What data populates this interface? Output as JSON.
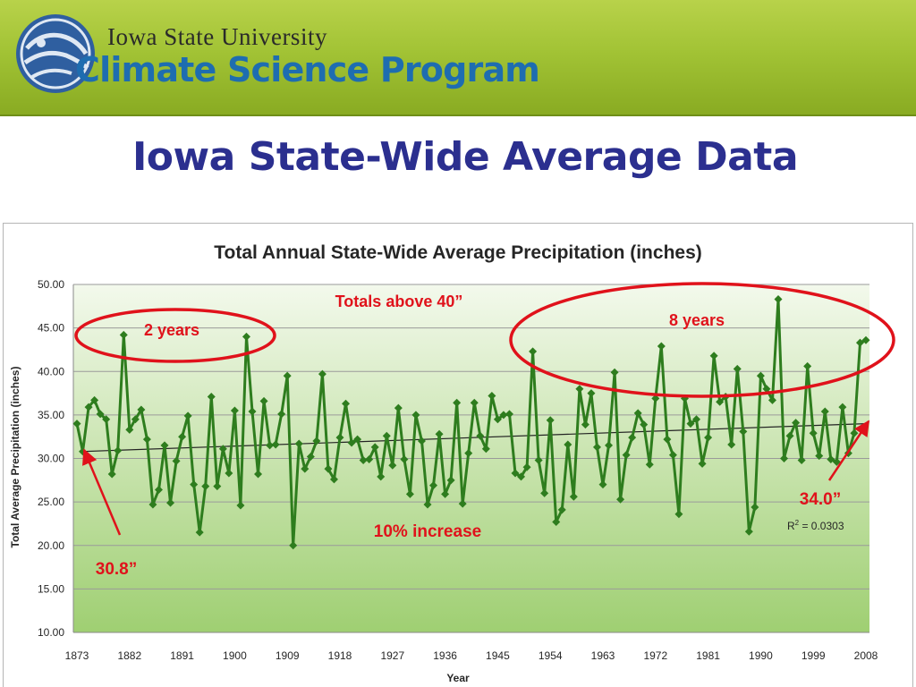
{
  "header": {
    "university": "Iowa State University",
    "program": "Climate Science Program",
    "logo_icon": "globe-logo-icon",
    "colors": {
      "banner": "#a2c335",
      "program_text": "#1e6db0",
      "title": "#2b2f8f"
    }
  },
  "slide": {
    "title": "Iowa State-Wide Average Data"
  },
  "chart_data": {
    "type": "line",
    "title": "Total Annual State-Wide Average Precipitation (inches)",
    "xlabel": "Year",
    "ylabel": "Total Average Precipitation (inches)",
    "ylim": [
      10,
      50
    ],
    "yticks": [
      "10.00",
      "15.00",
      "20.00",
      "25.00",
      "30.00",
      "35.00",
      "40.00",
      "45.00",
      "50.00"
    ],
    "xticks": [
      "1873",
      "1882",
      "1891",
      "1900",
      "1909",
      "1918",
      "1927",
      "1936",
      "1945",
      "1954",
      "1963",
      "1972",
      "1981",
      "1990",
      "1999",
      "2008"
    ],
    "x_range": [
      1873,
      2008
    ],
    "grid": true,
    "series": [
      {
        "color": "#2e7d1e",
        "marker": "diamond",
        "x": [
          1873,
          1874,
          1875,
          1876,
          1877,
          1878,
          1879,
          1880,
          1881,
          1882,
          1883,
          1884,
          1885,
          1886,
          1887,
          1888,
          1889,
          1890,
          1891,
          1892,
          1893,
          1894,
          1895,
          1896,
          1897,
          1898,
          1899,
          1900,
          1901,
          1902,
          1903,
          1904,
          1905,
          1906,
          1907,
          1908,
          1909,
          1910,
          1911,
          1912,
          1913,
          1914,
          1915,
          1916,
          1917,
          1918,
          1919,
          1920,
          1921,
          1922,
          1923,
          1924,
          1925,
          1926,
          1927,
          1928,
          1929,
          1930,
          1931,
          1932,
          1933,
          1934,
          1935,
          1936,
          1937,
          1938,
          1939,
          1940,
          1941,
          1942,
          1943,
          1944,
          1945,
          1946,
          1947,
          1948,
          1949,
          1950,
          1951,
          1952,
          1953,
          1954,
          1955,
          1956,
          1957,
          1958,
          1959,
          1960,
          1961,
          1962,
          1963,
          1964,
          1965,
          1966,
          1967,
          1968,
          1969,
          1970,
          1971,
          1972,
          1973,
          1974,
          1975,
          1976,
          1977,
          1978,
          1979,
          1980,
          1981,
          1982,
          1983,
          1984,
          1985,
          1986,
          1987,
          1988,
          1989,
          1990,
          1991,
          1992,
          1993,
          1994,
          1995,
          1996,
          1997,
          1998,
          1999,
          2000,
          2001,
          2002,
          2003,
          2004,
          2005,
          2006,
          2007,
          2008
        ],
        "y": [
          34.0,
          30.8,
          35.9,
          36.7,
          35.1,
          34.5,
          28.2,
          30.9,
          44.2,
          33.3,
          34.5,
          35.6,
          32.2,
          24.7,
          26.4,
          31.5,
          24.9,
          29.7,
          32.5,
          34.9,
          27.0,
          21.5,
          26.8,
          37.1,
          26.8,
          31.1,
          28.3,
          35.5,
          24.6,
          44.0,
          35.4,
          28.2,
          36.6,
          31.5,
          31.6,
          35.1,
          39.5,
          20.0,
          31.7,
          28.8,
          30.2,
          32.0,
          39.7,
          28.8,
          27.6,
          32.4,
          36.3,
          31.8,
          32.2,
          29.8,
          29.9,
          31.3,
          27.9,
          32.6,
          29.2,
          35.8,
          29.9,
          25.9,
          35.0,
          32.0,
          24.7,
          26.9,
          32.8,
          25.9,
          27.5,
          36.4,
          24.8,
          30.6,
          36.4,
          32.6,
          31.1,
          37.2,
          34.5,
          35.0,
          35.1,
          28.3,
          27.9,
          29.0,
          42.3,
          29.8,
          26.0,
          34.4,
          22.7,
          24.1,
          31.6,
          25.6,
          38.0,
          33.9,
          37.5,
          31.3,
          27.0,
          31.5,
          39.9,
          25.3,
          30.4,
          32.4,
          35.2,
          33.9,
          29.3,
          36.9,
          42.9,
          32.2,
          30.4,
          23.6,
          36.9,
          34.0,
          34.5,
          29.4,
          32.4,
          41.8,
          36.5,
          37.1,
          31.6,
          40.3,
          33.1,
          21.6,
          24.4,
          39.5,
          38.0,
          36.7,
          48.3,
          30.0,
          32.6,
          34.1,
          29.8,
          40.6,
          32.9,
          30.3,
          35.4,
          29.9,
          29.6,
          35.9,
          30.6,
          32.9,
          43.3,
          43.6
        ]
      }
    ],
    "trendline": {
      "start": [
        1874,
        30.8
      ],
      "end": [
        2008,
        34.0
      ]
    },
    "annotations": {
      "totals_above": "Totals above 40”",
      "left_count": "2 years",
      "right_count": "8 years",
      "increase": "10% increase",
      "start_value": "30.8”",
      "end_value": "34.0”",
      "r_squared_label": "R",
      "r_squared_exp": "2",
      "r_squared_value": " = 0.0303",
      "annotation_color": "#e0121b"
    }
  }
}
